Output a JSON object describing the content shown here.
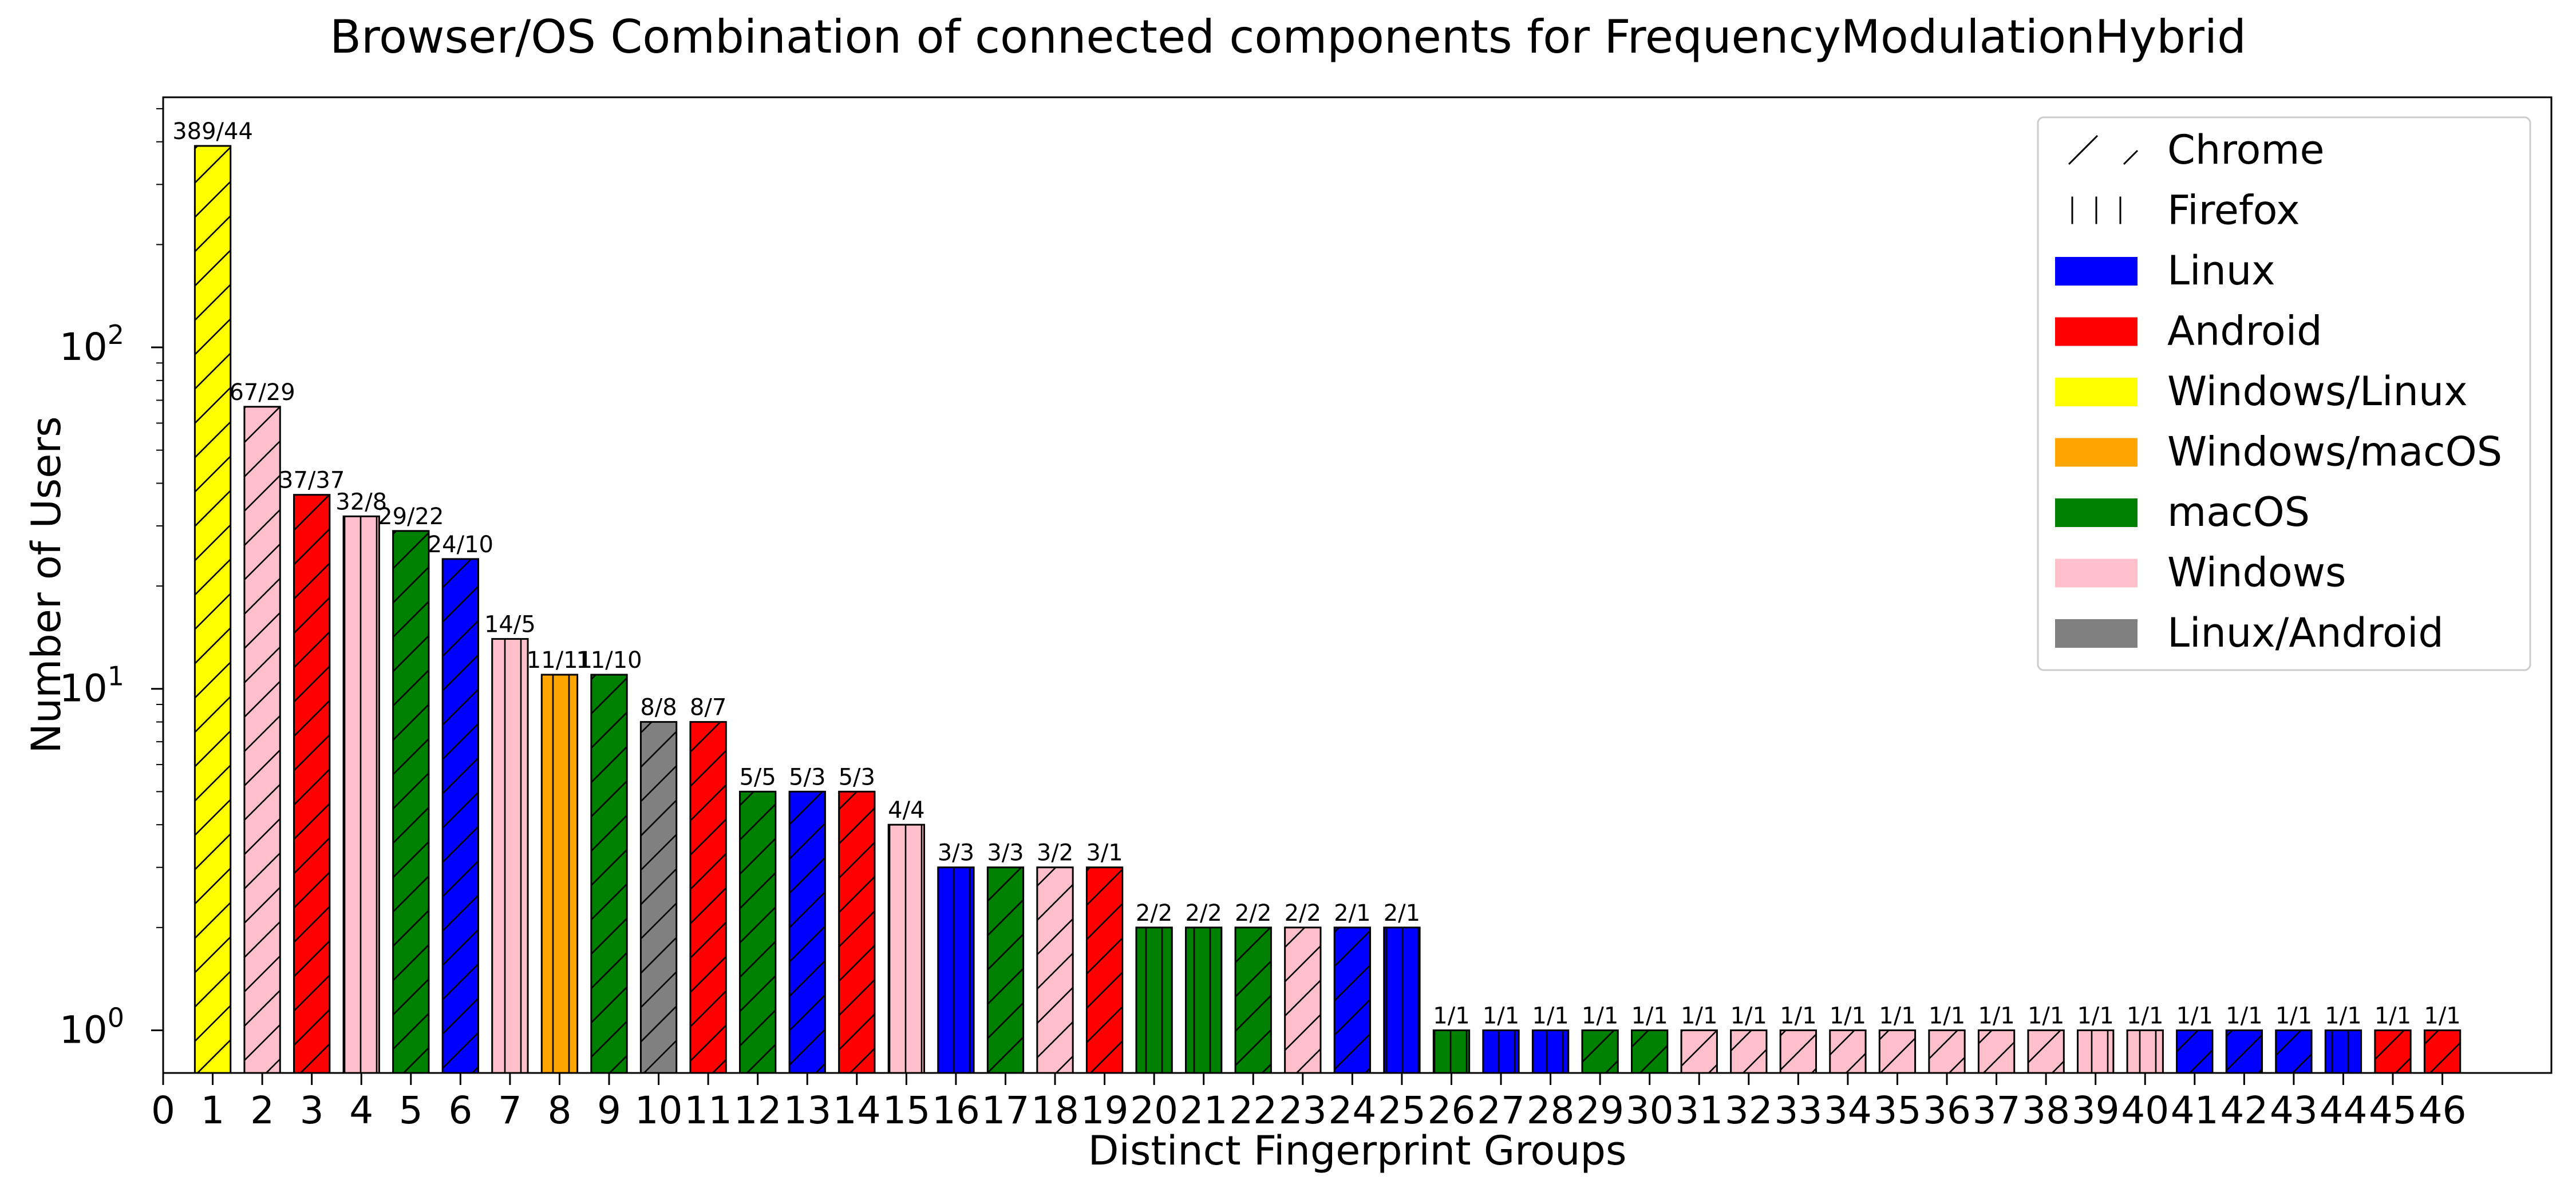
{
  "chart_data": {
    "type": "bar",
    "title": "Browser/OS Combination of connected components for FrequencyModulationHybrid",
    "xlabel": "Distinct Fingerprint Groups",
    "ylabel": "Number of Users",
    "y_scale": "log",
    "ylim": [
      0.75,
      540
    ],
    "xlim": [
      0,
      48.2
    ],
    "grid": false,
    "legend_position": "upper right",
    "x_ticks": [
      "0",
      "1",
      "2",
      "3",
      "4",
      "5",
      "6",
      "7",
      "8",
      "9",
      "10",
      "11",
      "12",
      "13",
      "14",
      "15",
      "16",
      "17",
      "18",
      "19",
      "20",
      "21",
      "22",
      "23",
      "24",
      "25",
      "26",
      "27",
      "28",
      "29",
      "30",
      "31",
      "32",
      "33",
      "34",
      "35",
      "36",
      "37",
      "38",
      "39",
      "40",
      "41",
      "42",
      "43",
      "44",
      "45",
      "46"
    ],
    "y_ticks": [
      {
        "value": 1,
        "base": "10",
        "exp": "0"
      },
      {
        "value": 10,
        "base": "10",
        "exp": "1"
      },
      {
        "value": 100,
        "base": "10",
        "exp": "2"
      }
    ],
    "colors": {
      "Linux": "#0000ff",
      "Android": "#ff0000",
      "Windows/Linux": "#ffff00",
      "Windows/macOS": "#ffa500",
      "macOS": "#008000",
      "Windows": "#ffc0cb",
      "Linux/Android": "#808080"
    },
    "legend": [
      {
        "label": "Chrome",
        "kind": "hatch",
        "hatch": "diag"
      },
      {
        "label": "Firefox",
        "kind": "hatch",
        "hatch": "vert"
      },
      {
        "label": "Linux",
        "kind": "color",
        "color": "#0000ff"
      },
      {
        "label": "Android",
        "kind": "color",
        "color": "#ff0000"
      },
      {
        "label": "Windows/Linux",
        "kind": "color",
        "color": "#ffff00"
      },
      {
        "label": "Windows/macOS",
        "kind": "color",
        "color": "#ffa500"
      },
      {
        "label": "macOS",
        "kind": "color",
        "color": "#008000"
      },
      {
        "label": "Windows",
        "kind": "color",
        "color": "#ffc0cb"
      },
      {
        "label": "Linux/Android",
        "kind": "color",
        "color": "#808080"
      }
    ],
    "bars": [
      {
        "x": 1,
        "value": 389,
        "label": "389/44",
        "os": "Windows/Linux",
        "browser": "Chrome"
      },
      {
        "x": 2,
        "value": 67,
        "label": "67/29",
        "os": "Windows",
        "browser": "Chrome"
      },
      {
        "x": 3,
        "value": 37,
        "label": "37/37",
        "os": "Android",
        "browser": "Chrome"
      },
      {
        "x": 4,
        "value": 32,
        "label": "32/8",
        "os": "Windows",
        "browser": "Firefox"
      },
      {
        "x": 5,
        "value": 29,
        "label": "29/22",
        "os": "macOS",
        "browser": "Chrome"
      },
      {
        "x": 6,
        "value": 24,
        "label": "24/10",
        "os": "Linux",
        "browser": "Chrome"
      },
      {
        "x": 7,
        "value": 14,
        "label": "14/5",
        "os": "Windows",
        "browser": "Firefox"
      },
      {
        "x": 8,
        "value": 11,
        "label": "11/11",
        "os": "Windows/macOS",
        "browser": "Firefox"
      },
      {
        "x": 9,
        "value": 11,
        "label": "11/10",
        "os": "macOS",
        "browser": "Chrome"
      },
      {
        "x": 10,
        "value": 8,
        "label": "8/8",
        "os": "Linux/Android",
        "browser": "Chrome"
      },
      {
        "x": 11,
        "value": 8,
        "label": "8/7",
        "os": "Android",
        "browser": "Chrome"
      },
      {
        "x": 12,
        "value": 5,
        "label": "5/5",
        "os": "macOS",
        "browser": "Chrome"
      },
      {
        "x": 13,
        "value": 5,
        "label": "5/3",
        "os": "Linux",
        "browser": "Chrome"
      },
      {
        "x": 14,
        "value": 5,
        "label": "5/3",
        "os": "Android",
        "browser": "Chrome"
      },
      {
        "x": 15,
        "value": 4,
        "label": "4/4",
        "os": "Windows",
        "browser": "Firefox"
      },
      {
        "x": 16,
        "value": 3,
        "label": "3/3",
        "os": "Linux",
        "browser": "Firefox"
      },
      {
        "x": 17,
        "value": 3,
        "label": "3/3",
        "os": "macOS",
        "browser": "Chrome"
      },
      {
        "x": 18,
        "value": 3,
        "label": "3/2",
        "os": "Windows",
        "browser": "Chrome"
      },
      {
        "x": 19,
        "value": 3,
        "label": "3/1",
        "os": "Android",
        "browser": "Chrome"
      },
      {
        "x": 20,
        "value": 2,
        "label": "2/2",
        "os": "macOS",
        "browser": "Firefox"
      },
      {
        "x": 21,
        "value": 2,
        "label": "2/2",
        "os": "macOS",
        "browser": "Firefox"
      },
      {
        "x": 22,
        "value": 2,
        "label": "2/2",
        "os": "macOS",
        "browser": "Chrome"
      },
      {
        "x": 23,
        "value": 2,
        "label": "2/2",
        "os": "Windows",
        "browser": "Chrome"
      },
      {
        "x": 24,
        "value": 2,
        "label": "2/1",
        "os": "Linux",
        "browser": "Chrome"
      },
      {
        "x": 25,
        "value": 2,
        "label": "2/1",
        "os": "Linux",
        "browser": "Firefox"
      },
      {
        "x": 26,
        "value": 1,
        "label": "1/1",
        "os": "macOS",
        "browser": "Firefox"
      },
      {
        "x": 27,
        "value": 1,
        "label": "1/1",
        "os": "Linux",
        "browser": "Firefox"
      },
      {
        "x": 28,
        "value": 1,
        "label": "1/1",
        "os": "Linux",
        "browser": "Firefox"
      },
      {
        "x": 29,
        "value": 1,
        "label": "1/1",
        "os": "macOS",
        "browser": "Chrome"
      },
      {
        "x": 30,
        "value": 1,
        "label": "1/1",
        "os": "macOS",
        "browser": "Chrome"
      },
      {
        "x": 31,
        "value": 1,
        "label": "1/1",
        "os": "Windows",
        "browser": "Chrome"
      },
      {
        "x": 32,
        "value": 1,
        "label": "1/1",
        "os": "Windows",
        "browser": "Chrome"
      },
      {
        "x": 33,
        "value": 1,
        "label": "1/1",
        "os": "Windows",
        "browser": "Chrome"
      },
      {
        "x": 34,
        "value": 1,
        "label": "1/1",
        "os": "Windows",
        "browser": "Chrome"
      },
      {
        "x": 35,
        "value": 1,
        "label": "1/1",
        "os": "Windows",
        "browser": "Chrome"
      },
      {
        "x": 36,
        "value": 1,
        "label": "1/1",
        "os": "Windows",
        "browser": "Chrome"
      },
      {
        "x": 37,
        "value": 1,
        "label": "1/1",
        "os": "Windows",
        "browser": "Chrome"
      },
      {
        "x": 38,
        "value": 1,
        "label": "1/1",
        "os": "Windows",
        "browser": "Chrome"
      },
      {
        "x": 39,
        "value": 1,
        "label": "1/1",
        "os": "Windows",
        "browser": "Firefox"
      },
      {
        "x": 40,
        "value": 1,
        "label": "1/1",
        "os": "Windows",
        "browser": "Firefox"
      },
      {
        "x": 41,
        "value": 1,
        "label": "1/1",
        "os": "Linux",
        "browser": "Chrome"
      },
      {
        "x": 42,
        "value": 1,
        "label": "1/1",
        "os": "Linux",
        "browser": "Chrome"
      },
      {
        "x": 43,
        "value": 1,
        "label": "1/1",
        "os": "Linux",
        "browser": "Chrome"
      },
      {
        "x": 44,
        "value": 1,
        "label": "1/1",
        "os": "Linux",
        "browser": "Firefox"
      },
      {
        "x": 45,
        "value": 1,
        "label": "1/1",
        "os": "Android",
        "browser": "Chrome"
      },
      {
        "x": 46,
        "value": 1,
        "label": "1/1",
        "os": "Android",
        "browser": "Chrome"
      }
    ]
  }
}
